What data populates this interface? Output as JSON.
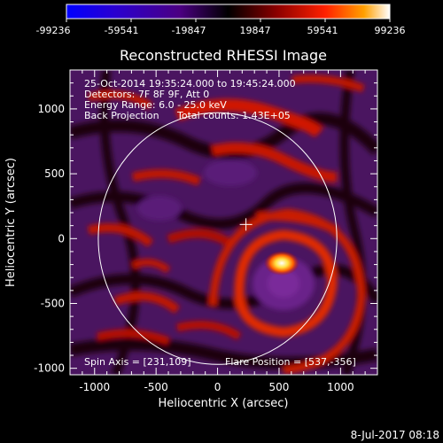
{
  "colorbar": {
    "ticks": [
      "-99236",
      "-59541",
      "-19847",
      "19847",
      "59541",
      "99236"
    ],
    "colors": [
      "#0000ff",
      "#2a00d0",
      "#4b0082",
      "#000000",
      "#8b0000",
      "#ff2000",
      "#ffa000",
      "#ffffff"
    ]
  },
  "title": "Reconstructed RHESSI Image",
  "info": {
    "line1": "25-Oct-2014 19:35:24.000 to 19:45:24.000",
    "line2": "Detectors: 7F 8F 9F, Att 0",
    "line3": "Energy Range: 6.0 - 25.0 keV",
    "line4_left": "Back Projection",
    "line4_right": "Total counts: 1.43E+05"
  },
  "bottom_left_note": "Spin Axis = [231,109]",
  "bottom_right_note": "Flare Position = [537,-356]",
  "x_axis": {
    "label": "Heliocentric X (arcsec)",
    "ticks": [
      "-1000",
      "-500",
      "0",
      "500",
      "1000"
    ],
    "tick_values": [
      -1000,
      -500,
      0,
      500,
      1000
    ],
    "range": [
      -1200,
      1300
    ]
  },
  "y_axis": {
    "label": "Heliocentric Y (arcsec)",
    "ticks": [
      "1000",
      "500",
      "0",
      "-500",
      "-1000"
    ],
    "tick_values": [
      1000,
      500,
      0,
      -500,
      -1000
    ],
    "range": [
      -1050,
      1300
    ]
  },
  "solar_limb_radius": 970,
  "spin_axis": [
    231,
    109
  ],
  "flare_position": [
    537,
    -356
  ],
  "footer_date": "8-Jul-2017 08:18"
}
